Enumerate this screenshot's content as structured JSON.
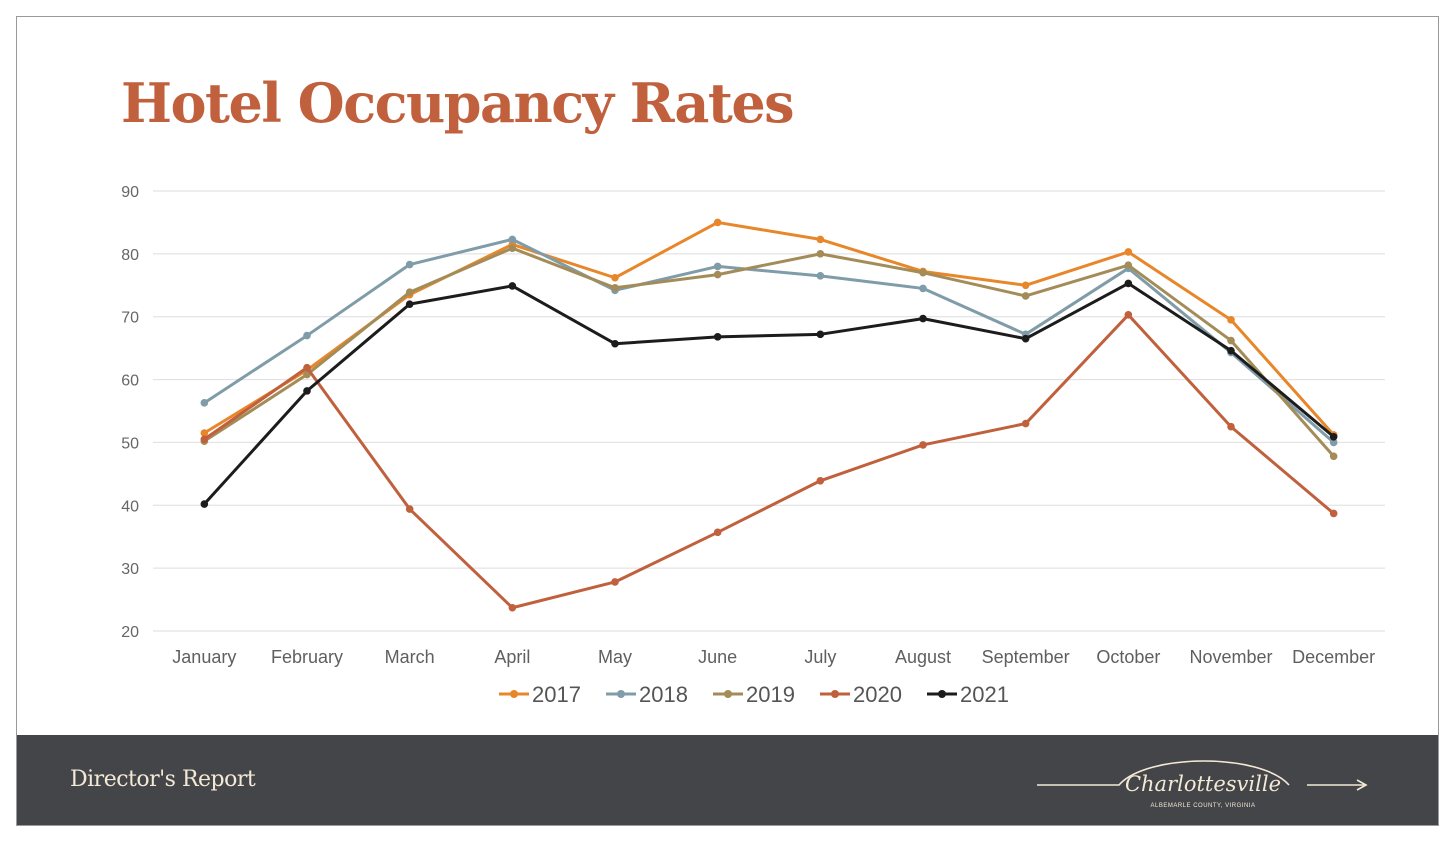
{
  "slide": {
    "title": "Hotel Occupancy Rates",
    "footer_label": "Director's Report",
    "brand": {
      "name": "Charlottesville",
      "tagline": "ALBEMARLE COUNTY, VIRGINIA"
    }
  },
  "colors": {
    "title": "#c1603d",
    "footer_bg": "#434548",
    "footer_text": "#f4e9d6"
  },
  "chart_data": {
    "type": "line",
    "title": "",
    "xlabel": "",
    "ylabel": "",
    "ylim": [
      20,
      90
    ],
    "yticks": [
      20,
      30,
      40,
      50,
      60,
      70,
      80,
      90
    ],
    "grid": true,
    "legend_position": "bottom",
    "categories": [
      "January",
      "February",
      "March",
      "April",
      "May",
      "June",
      "July",
      "August",
      "September",
      "October",
      "November",
      "December"
    ],
    "series": [
      {
        "name": "2017",
        "color": "#e8862a",
        "values": [
          51.5,
          61.5,
          73.5,
          81.5,
          76.2,
          85.0,
          82.3,
          77.2,
          75.0,
          80.3,
          69.5,
          51.2
        ]
      },
      {
        "name": "2018",
        "color": "#7f9ca8",
        "values": [
          56.3,
          67.0,
          78.3,
          82.3,
          74.2,
          78.0,
          76.5,
          74.5,
          67.2,
          77.7,
          64.3,
          50.0
        ]
      },
      {
        "name": "2019",
        "color": "#a38c58",
        "values": [
          50.2,
          60.8,
          73.9,
          80.9,
          74.6,
          76.7,
          80.0,
          77.0,
          73.3,
          78.2,
          66.2,
          47.8
        ]
      },
      {
        "name": "2020",
        "color": "#c0603c",
        "values": [
          50.5,
          61.9,
          39.4,
          23.7,
          27.8,
          35.7,
          43.9,
          49.6,
          53.0,
          70.3,
          52.5,
          38.7
        ]
      },
      {
        "name": "2021",
        "color": "#1c1c1c",
        "values": [
          40.2,
          58.2,
          72.0,
          74.9,
          65.7,
          66.8,
          67.2,
          69.7,
          66.5,
          75.3,
          64.6,
          50.9
        ]
      }
    ]
  }
}
